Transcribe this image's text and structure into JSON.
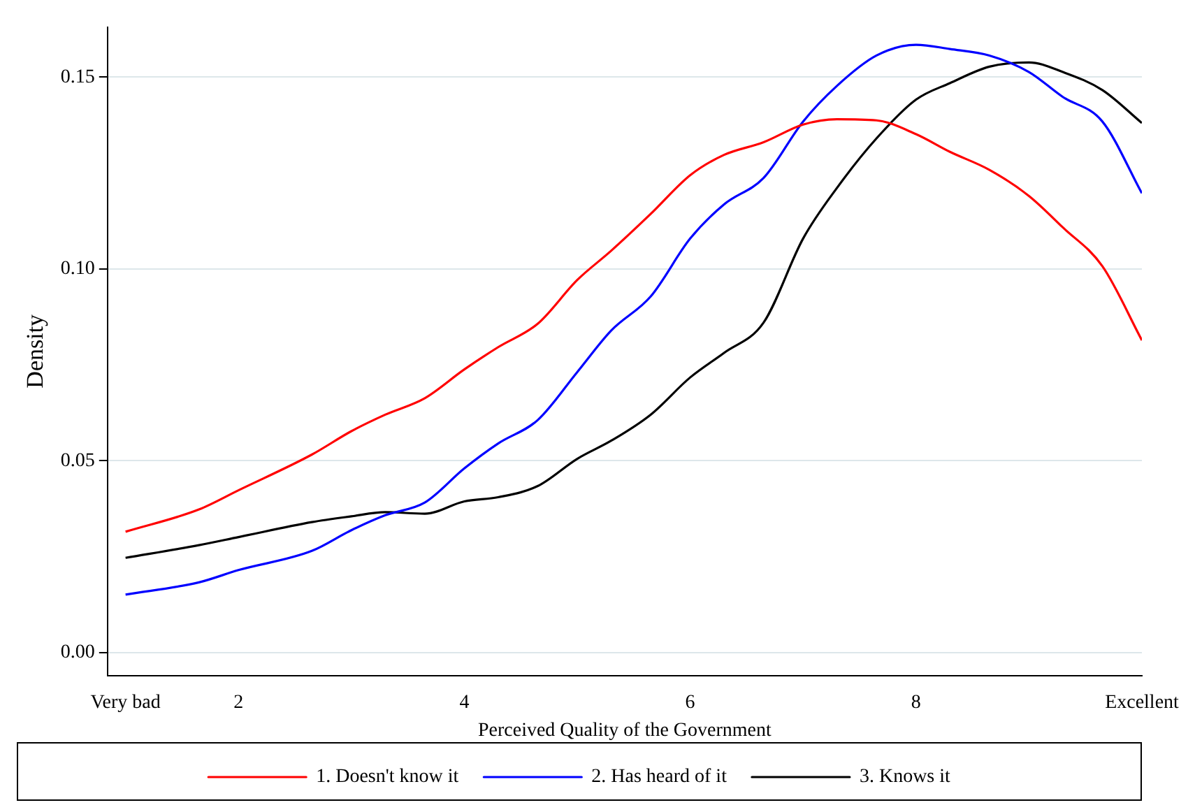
{
  "chart_data": {
    "type": "line",
    "xlabel": "Perceived Quality of the Government",
    "ylabel": "Density",
    "x": [
      1,
      1.65,
      2,
      2.65,
      3,
      3.3,
      3.65,
      4,
      4.3,
      4.65,
      5,
      5.3,
      5.65,
      6,
      6.3,
      6.65,
      7,
      7.3,
      7.65,
      8,
      8.3,
      8.65,
      9,
      9.3,
      9.65,
      10
    ],
    "series": [
      {
        "name": "1. Doesn't know it",
        "color": "#ff0000",
        "values": [
          0.0315,
          0.0373,
          0.0423,
          0.0516,
          0.0577,
          0.062,
          0.0663,
          0.0738,
          0.0796,
          0.0857,
          0.0971,
          0.1047,
          0.1143,
          0.1244,
          0.1297,
          0.133,
          0.1376,
          0.139,
          0.1387,
          0.1351,
          0.1305,
          0.1258,
          0.119,
          0.1108,
          0.1007,
          0.0814
        ]
      },
      {
        "name": "2. Has heard of it",
        "color": "#0000ff",
        "values": [
          0.0151,
          0.0183,
          0.0215,
          0.0265,
          0.0319,
          0.0358,
          0.0391,
          0.048,
          0.0545,
          0.0606,
          0.0731,
          0.0839,
          0.0928,
          0.1079,
          0.1168,
          0.1237,
          0.1384,
          0.1477,
          0.1556,
          0.1584,
          0.1573,
          0.1556,
          0.1513,
          0.1448,
          0.1384,
          0.1197
        ]
      },
      {
        "name": "3. Knows it",
        "color": "#000000",
        "values": [
          0.0247,
          0.028,
          0.0301,
          0.034,
          0.0355,
          0.0366,
          0.0362,
          0.0394,
          0.0405,
          0.0434,
          0.0505,
          0.0552,
          0.062,
          0.0717,
          0.0781,
          0.086,
          0.1079,
          0.1211,
          0.134,
          0.1441,
          0.1484,
          0.1527,
          0.1538,
          0.1513,
          0.1466,
          0.138
        ]
      }
    ],
    "xlim": [
      0.84,
      10
    ],
    "xticks": [
      {
        "value": 1,
        "label": "Very bad"
      },
      2,
      4,
      6,
      8,
      {
        "value": 10,
        "label": "Excellent"
      }
    ],
    "ylim": [
      -0.006,
      0.163
    ],
    "yticks": [
      {
        "value": 0,
        "label": "0.00"
      },
      0.05,
      {
        "value": 0.1,
        "label": "0.10"
      },
      0.15
    ],
    "grid": "y",
    "legend": "bottom",
    "marker": "none",
    "line_style": "solid"
  }
}
